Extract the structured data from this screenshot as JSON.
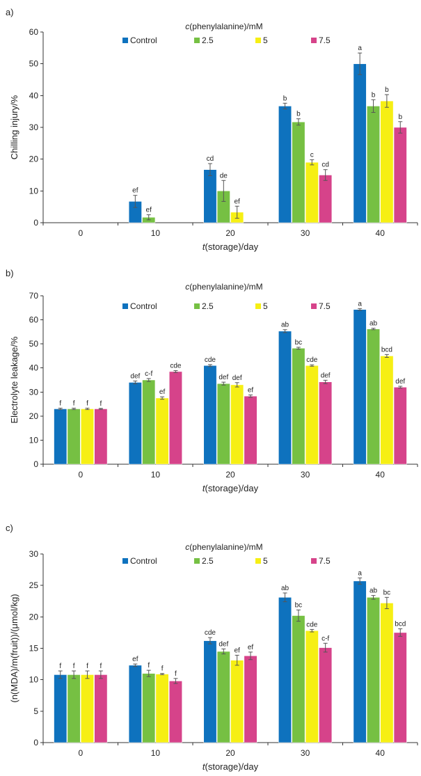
{
  "colors": {
    "Control": "#0e72be",
    "2.5": "#76c043",
    "5": "#f6ef14",
    "7.5": "#d6438a",
    "errorbar": "#555555",
    "axis": "#333333"
  },
  "chart_data": [
    {
      "type": "bar",
      "panel_label": "a)",
      "legend_title": "c(phenylalanine)/mM",
      "categories": [
        "0",
        "10",
        "20",
        "30",
        "40"
      ],
      "xlabel": "t(storage)/day",
      "ylabel": "Chilling injury/%",
      "ylim": [
        0,
        60
      ],
      "yticks": [
        0,
        10,
        20,
        30,
        40,
        50,
        60
      ],
      "series": [
        {
          "name": "Control",
          "values": [
            0,
            6.7,
            16.7,
            36.7,
            50.0
          ],
          "errors": [
            0,
            1.9,
            1.9,
            0.9,
            3.4
          ],
          "labels": [
            "",
            "ef",
            "cd",
            "b",
            "a"
          ]
        },
        {
          "name": "2.5",
          "values": [
            0,
            1.7,
            10.0,
            31.7,
            36.7
          ],
          "errors": [
            0,
            0.8,
            3.3,
            1.0,
            2.0
          ],
          "labels": [
            "",
            "ef",
            "de",
            "b",
            "b"
          ]
        },
        {
          "name": "5",
          "values": [
            0,
            0,
            3.3,
            19.0,
            38.3
          ],
          "errors": [
            0,
            0,
            1.9,
            0.8,
            2.0
          ],
          "labels": [
            "",
            "",
            "ef",
            "c",
            "b"
          ]
        },
        {
          "name": "7.5",
          "values": [
            0,
            0,
            0,
            15.0,
            30.0
          ],
          "errors": [
            0,
            0,
            0,
            1.7,
            1.8
          ],
          "labels": [
            "",
            "",
            "",
            "cd",
            "b"
          ]
        }
      ]
    },
    {
      "type": "bar",
      "panel_label": "b)",
      "legend_title": "c(phenylalanine)/mM",
      "categories": [
        "0",
        "10",
        "20",
        "30",
        "40"
      ],
      "xlabel": "t(storage)/day",
      "ylabel": "Electrolyte leakage/%",
      "ylim": [
        0,
        70
      ],
      "yticks": [
        0,
        10,
        20,
        30,
        40,
        50,
        60,
        70
      ],
      "series": [
        {
          "name": "Control",
          "values": [
            23.0,
            34.0,
            41.0,
            55.3,
            64.3
          ],
          "errors": [
            0.3,
            0.6,
            0.4,
            0.6,
            0.4
          ],
          "labels": [
            "f",
            "def",
            "cde",
            "ab",
            "a"
          ]
        },
        {
          "name": "2.5",
          "values": [
            23.0,
            35.0,
            33.5,
            48.2,
            56.2
          ],
          "errors": [
            0.3,
            0.6,
            0.6,
            0.4,
            0.3
          ],
          "labels": [
            "f",
            "c-f",
            "def",
            "bc",
            "ab"
          ]
        },
        {
          "name": "5",
          "values": [
            23.0,
            27.5,
            33.0,
            41.0,
            45.0
          ],
          "errors": [
            0.3,
            0.5,
            0.9,
            0.3,
            0.6
          ],
          "labels": [
            "f",
            "ef",
            "def",
            "cde",
            "bcd"
          ]
        },
        {
          "name": "7.5",
          "values": [
            23.0,
            38.5,
            28.3,
            34.2,
            32.0
          ],
          "errors": [
            0.2,
            0.4,
            0.5,
            0.7,
            0.4
          ],
          "labels": [
            "f",
            "cde",
            "ef",
            "def",
            "def"
          ]
        }
      ]
    },
    {
      "type": "bar",
      "panel_label": "c)",
      "legend_title": "c(phenylalanine)/mM",
      "categories": [
        "0",
        "10",
        "20",
        "30",
        "40"
      ],
      "xlabel": "t(storage)/day",
      "ylabel": "(n(MDA)/m(fruit))/(μmol/kg)",
      "ylim": [
        0,
        30
      ],
      "yticks": [
        0,
        5,
        10,
        15,
        20,
        25,
        30
      ],
      "series": [
        {
          "name": "Control",
          "values": [
            10.8,
            12.3,
            16.2,
            23.1,
            25.7
          ],
          "errors": [
            0.6,
            0.2,
            0.5,
            0.7,
            0.5
          ],
          "labels": [
            "f",
            "ef",
            "cde",
            "ab",
            "a"
          ]
        },
        {
          "name": "2.5",
          "values": [
            10.8,
            11.0,
            14.5,
            20.2,
            23.1
          ],
          "errors": [
            0.6,
            0.5,
            0.4,
            0.9,
            0.3
          ],
          "labels": [
            "f",
            "f",
            "def",
            "bc",
            "ab"
          ]
        },
        {
          "name": "5",
          "values": [
            10.8,
            10.9,
            13.1,
            17.8,
            22.2
          ],
          "errors": [
            0.6,
            0.1,
            0.8,
            0.2,
            0.9
          ],
          "labels": [
            "f",
            "f",
            "ef",
            "cde",
            "bc"
          ]
        },
        {
          "name": "7.5",
          "values": [
            10.8,
            9.8,
            13.8,
            15.1,
            17.5
          ],
          "errors": [
            0.6,
            0.4,
            0.6,
            0.7,
            0.6
          ],
          "labels": [
            "f",
            "f",
            "ef",
            "c-f",
            "bcd"
          ]
        }
      ]
    }
  ]
}
